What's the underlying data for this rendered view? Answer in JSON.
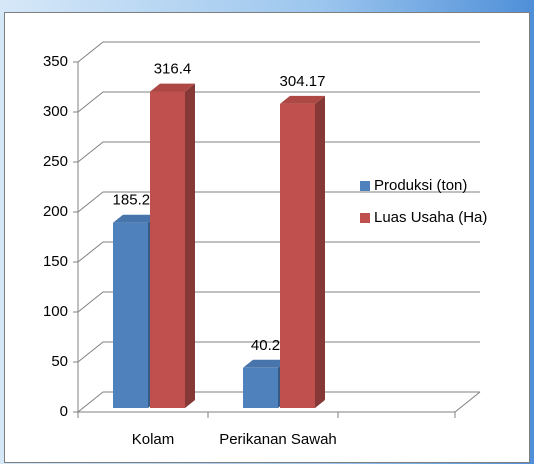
{
  "chart_data": {
    "type": "bar3d",
    "categories": [
      "Kolam",
      "Perikanan Sawah"
    ],
    "series": [
      {
        "name": "Produksi (ton)",
        "color": "#4f81bd",
        "values": [
          185.28,
          40.2
        ]
      },
      {
        "name": "Luas Usaha (Ha)",
        "color": "#c0504d",
        "values": [
          316.4,
          304.17
        ]
      }
    ],
    "ylim": [
      0,
      350
    ],
    "yticks": [
      0,
      50,
      100,
      150,
      200,
      250,
      300,
      350
    ],
    "grid": true,
    "legend": "right"
  }
}
